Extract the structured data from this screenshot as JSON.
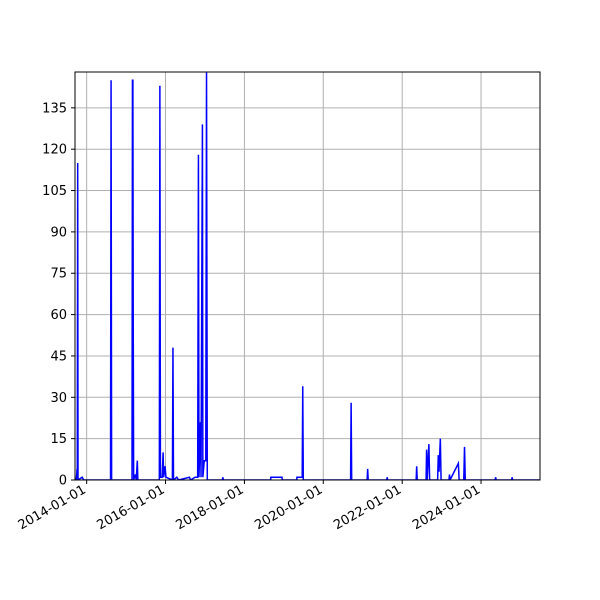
{
  "chart_data": {
    "type": "line",
    "title": "",
    "xlabel": "",
    "ylabel": "",
    "x_axis": "date",
    "xlim": [
      "2013-09-15",
      "2025-06-30"
    ],
    "ylim": [
      0,
      148
    ],
    "grid": true,
    "line_color": "#0000ff",
    "y_ticks": [
      0,
      15,
      30,
      45,
      60,
      75,
      90,
      105,
      120,
      135
    ],
    "x_ticks": [
      "2014-01-01",
      "2016-01-01",
      "2018-01-01",
      "2020-01-01",
      "2022-01-01",
      "2024-01-01"
    ],
    "series": [
      {
        "points": [
          [
            "2013-09-25",
            0
          ],
          [
            "2013-10-01",
            2
          ],
          [
            "2013-10-04",
            4
          ],
          [
            "2013-10-06",
            0
          ],
          [
            "2013-10-10",
            115
          ],
          [
            "2013-10-13",
            0
          ],
          [
            "2013-11-20",
            1
          ],
          [
            "2013-12-05",
            0
          ],
          [
            "2014-08-10",
            0
          ],
          [
            "2014-08-15",
            145
          ],
          [
            "2014-08-20",
            0
          ],
          [
            "2015-02-25",
            0
          ],
          [
            "2015-03-01",
            145
          ],
          [
            "2015-03-05",
            145
          ],
          [
            "2015-03-08",
            60
          ],
          [
            "2015-03-12",
            0
          ],
          [
            "2015-03-28",
            2
          ],
          [
            "2015-04-05",
            0
          ],
          [
            "2015-04-15",
            7
          ],
          [
            "2015-04-20",
            0
          ],
          [
            "2015-11-05",
            0
          ],
          [
            "2015-11-10",
            143
          ],
          [
            "2015-11-15",
            1
          ],
          [
            "2015-12-01",
            1
          ],
          [
            "2015-12-10",
            10
          ],
          [
            "2015-12-15",
            1
          ],
          [
            "2015-12-28",
            5
          ],
          [
            "2016-01-05",
            1
          ],
          [
            "2016-03-05",
            0
          ],
          [
            "2016-03-10",
            48
          ],
          [
            "2016-03-15",
            0
          ],
          [
            "2016-04-15",
            1
          ],
          [
            "2016-05-01",
            0
          ],
          [
            "2016-08-10",
            1
          ],
          [
            "2016-08-20",
            0
          ],
          [
            "2016-10-01",
            1
          ],
          [
            "2016-10-25",
            1
          ],
          [
            "2016-11-01",
            118
          ],
          [
            "2016-11-06",
            1
          ],
          [
            "2016-11-20",
            21
          ],
          [
            "2016-11-25",
            1
          ],
          [
            "2016-12-08",
            129
          ],
          [
            "2016-12-12",
            1
          ],
          [
            "2016-12-25",
            7
          ],
          [
            "2017-01-08",
            7
          ],
          [
            "2017-01-15",
            148
          ],
          [
            "2017-01-22",
            0
          ],
          [
            "2017-06-10",
            0
          ],
          [
            "2017-06-15",
            1
          ],
          [
            "2017-06-20",
            0
          ],
          [
            "2018-09-01",
            0
          ],
          [
            "2018-09-02",
            1
          ],
          [
            "2018-12-15",
            1
          ],
          [
            "2018-12-16",
            0
          ],
          [
            "2019-05-01",
            0
          ],
          [
            "2019-05-02",
            1
          ],
          [
            "2019-06-20",
            1
          ],
          [
            "2019-06-25",
            34
          ],
          [
            "2019-06-30",
            0
          ],
          [
            "2020-09-10",
            0
          ],
          [
            "2020-09-15",
            28
          ],
          [
            "2020-09-20",
            0
          ],
          [
            "2021-02-10",
            0
          ],
          [
            "2021-02-15",
            4
          ],
          [
            "2021-02-20",
            0
          ],
          [
            "2021-08-10",
            0
          ],
          [
            "2021-08-15",
            1
          ],
          [
            "2021-08-20",
            0
          ],
          [
            "2022-05-10",
            0
          ],
          [
            "2022-05-15",
            5
          ],
          [
            "2022-05-20",
            0
          ],
          [
            "2022-08-10",
            0
          ],
          [
            "2022-08-15",
            11
          ],
          [
            "2022-08-20",
            0
          ],
          [
            "2022-09-05",
            13
          ],
          [
            "2022-09-12",
            0
          ],
          [
            "2022-11-25",
            0
          ],
          [
            "2022-12-01",
            9
          ],
          [
            "2022-12-08",
            3
          ],
          [
            "2022-12-20",
            15
          ],
          [
            "2022-12-27",
            0
          ],
          [
            "2023-03-10",
            0
          ],
          [
            "2023-03-15",
            2
          ],
          [
            "2023-03-20",
            0
          ],
          [
            "2023-06-05",
            6
          ],
          [
            "2023-06-12",
            0
          ],
          [
            "2023-07-25",
            0
          ],
          [
            "2023-08-01",
            12
          ],
          [
            "2023-08-08",
            0
          ],
          [
            "2024-05-10",
            0
          ],
          [
            "2024-05-15",
            1
          ],
          [
            "2024-05-20",
            0
          ],
          [
            "2024-10-10",
            0
          ],
          [
            "2024-10-15",
            1
          ],
          [
            "2024-10-20",
            0
          ],
          [
            "2025-06-30",
            0
          ]
        ]
      }
    ]
  }
}
